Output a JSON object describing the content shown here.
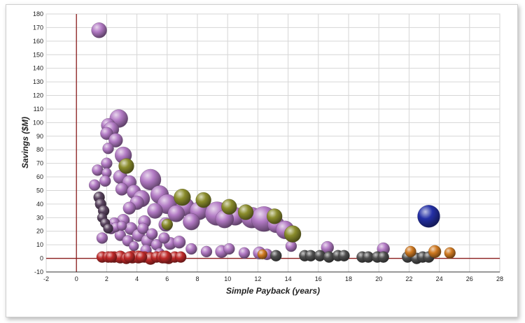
{
  "chart_data": {
    "type": "scatter",
    "bubble": true,
    "title": "",
    "xlabel": "Simple Payback (years)",
    "ylabel": "Savings ($M)",
    "xlim": [
      -2,
      28
    ],
    "ylim": [
      -10,
      180
    ],
    "xticks": [
      "-2",
      "0",
      "2",
      "4",
      "6",
      "8",
      "10",
      "12",
      "14",
      "16",
      "18",
      "20",
      "22",
      "24",
      "26",
      "28"
    ],
    "yticks": [
      "-10",
      "0",
      "10",
      "20",
      "30",
      "40",
      "50",
      "60",
      "70",
      "80",
      "90",
      "100",
      "110",
      "120",
      "130",
      "140",
      "150",
      "160",
      "170",
      "180"
    ],
    "grid": true,
    "legend": "none",
    "colors": {
      "purple": "#b27ac4",
      "olive": "#8a8c2c",
      "dark": "#5a4460",
      "red": "#bf2a2a",
      "gray": "#4e4e4e",
      "orange": "#d07a22",
      "blue": "#2430a6"
    },
    "series": [
      {
        "color": "purple",
        "points": [
          [
            1.5,
            168,
            11
          ],
          [
            2.8,
            103,
            13
          ],
          [
            2.1,
            98,
            10
          ],
          [
            2.3,
            95,
            11
          ],
          [
            2.0,
            92,
            9
          ],
          [
            2.6,
            87,
            10
          ],
          [
            2.1,
            81,
            8
          ],
          [
            3.1,
            76,
            12
          ],
          [
            2.0,
            70,
            8
          ],
          [
            1.4,
            65,
            8
          ],
          [
            2.0,
            63,
            7
          ],
          [
            2.9,
            60,
            10
          ],
          [
            4.9,
            58,
            15
          ],
          [
            1.9,
            57,
            8
          ],
          [
            1.2,
            54,
            8
          ],
          [
            3.5,
            56,
            10
          ],
          [
            3.0,
            51,
            9
          ],
          [
            3.8,
            49,
            10
          ],
          [
            5.5,
            47,
            13
          ],
          [
            4.3,
            44,
            12
          ],
          [
            4.0,
            41,
            10
          ],
          [
            6.0,
            40,
            14
          ],
          [
            7.2,
            38,
            13
          ],
          [
            3.5,
            37,
            9
          ],
          [
            5.2,
            35,
            11
          ],
          [
            6.6,
            33,
            12
          ],
          [
            8.1,
            35,
            13
          ],
          [
            9.3,
            33,
            17
          ],
          [
            10.5,
            31,
            13
          ],
          [
            11.6,
            30,
            15
          ],
          [
            12.4,
            29,
            18
          ],
          [
            9.8,
            29,
            13
          ],
          [
            7.6,
            27,
            12
          ],
          [
            5.9,
            25,
            10
          ],
          [
            13.2,
            25,
            12
          ],
          [
            13.8,
            21,
            13
          ],
          [
            4.5,
            27,
            9
          ],
          [
            3.1,
            28,
            9
          ],
          [
            2.5,
            26,
            8
          ],
          [
            2.3,
            22,
            8
          ],
          [
            3.6,
            22,
            9
          ],
          [
            4.1,
            17,
            9
          ],
          [
            2.9,
            17,
            8
          ],
          [
            3.4,
            13,
            8
          ],
          [
            4.7,
            13,
            9
          ],
          [
            5.3,
            10,
            8
          ],
          [
            6.2,
            11,
            9
          ],
          [
            7.6,
            7,
            8
          ],
          [
            8.6,
            5,
            8
          ],
          [
            9.6,
            5,
            9
          ],
          [
            10.1,
            7,
            8
          ],
          [
            11.1,
            4,
            8
          ],
          [
            12.1,
            4,
            9
          ],
          [
            12.6,
            3,
            8
          ],
          [
            14.2,
            9,
            8
          ],
          [
            16.6,
            8,
            9
          ],
          [
            20.3,
            7,
            9
          ],
          [
            2.6,
            23,
            7
          ],
          [
            3.0,
            24,
            7
          ],
          [
            4.4,
            22,
            8
          ],
          [
            5.0,
            18,
            8
          ],
          [
            5.8,
            15,
            8
          ],
          [
            6.8,
            12,
            9
          ],
          [
            3.8,
            9,
            7
          ],
          [
            4.6,
            6,
            8
          ],
          [
            5.5,
            4,
            7
          ],
          [
            1.7,
            15,
            8
          ]
        ]
      },
      {
        "color": "olive",
        "points": [
          [
            3.3,
            68,
            11
          ],
          [
            7.0,
            45,
            12
          ],
          [
            8.4,
            43,
            11
          ],
          [
            10.1,
            38,
            11
          ],
          [
            11.2,
            34,
            11
          ],
          [
            13.1,
            31,
            11
          ],
          [
            14.3,
            18,
            12
          ],
          [
            6.0,
            25,
            8
          ]
        ]
      },
      {
        "color": "dark",
        "points": [
          [
            1.5,
            45,
            8
          ],
          [
            1.6,
            40,
            8
          ],
          [
            1.8,
            35,
            8
          ],
          [
            1.7,
            30,
            7
          ],
          [
            1.9,
            26,
            7
          ],
          [
            2.1,
            22,
            7
          ]
        ]
      },
      {
        "color": "red",
        "points": [
          [
            1.7,
            1,
            8
          ],
          [
            2.1,
            1,
            8
          ],
          [
            2.5,
            1,
            8
          ],
          [
            2.9,
            1,
            9
          ],
          [
            3.3,
            0,
            8
          ],
          [
            3.7,
            1,
            9
          ],
          [
            4.1,
            1,
            9
          ],
          [
            4.5,
            1,
            8
          ],
          [
            4.9,
            0,
            9
          ],
          [
            5.3,
            1,
            8
          ],
          [
            5.7,
            1,
            9
          ],
          [
            6.1,
            0,
            8
          ],
          [
            6.5,
            1,
            8
          ],
          [
            6.9,
            1,
            8
          ],
          [
            2.3,
            1,
            8
          ],
          [
            3.5,
            1,
            8
          ],
          [
            4.3,
            1,
            8
          ],
          [
            5.9,
            1,
            9
          ]
        ]
      },
      {
        "color": "gray",
        "points": [
          [
            13.2,
            2,
            8
          ],
          [
            15.1,
            2,
            8
          ],
          [
            15.5,
            2,
            8
          ],
          [
            16.1,
            2,
            8
          ],
          [
            16.7,
            1,
            8
          ],
          [
            17.3,
            2,
            8
          ],
          [
            17.7,
            2,
            8
          ],
          [
            18.9,
            1,
            8
          ],
          [
            19.3,
            1,
            8
          ],
          [
            19.9,
            1,
            8
          ],
          [
            20.3,
            1,
            8
          ],
          [
            21.9,
            1,
            8
          ],
          [
            22.5,
            0,
            8
          ],
          [
            22.9,
            1,
            8
          ],
          [
            23.3,
            1,
            8
          ]
        ]
      },
      {
        "color": "orange",
        "points": [
          [
            12.3,
            3,
            7
          ],
          [
            22.1,
            5,
            8
          ],
          [
            23.7,
            5,
            9
          ],
          [
            24.7,
            4,
            8
          ]
        ]
      },
      {
        "color": "blue",
        "points": [
          [
            23.3,
            31,
            16
          ]
        ]
      }
    ]
  }
}
